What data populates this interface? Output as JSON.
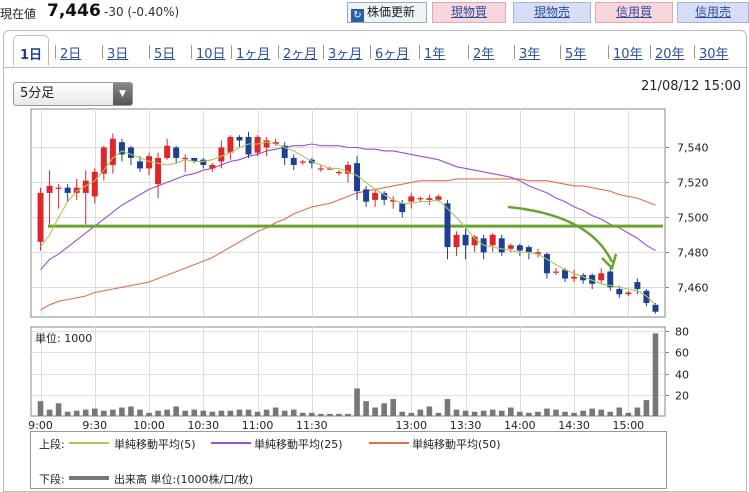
{
  "header": {
    "price_label": "現在値",
    "price_value": "7,446",
    "price_change": "-30 (-0.40%)",
    "refresh_label": "株価更新",
    "buttons": [
      "現物買",
      "現物売",
      "信用買",
      "信用売"
    ]
  },
  "tabs": [
    "1日",
    "2日",
    "3日",
    "5日",
    "10日",
    "1ヶ月",
    "2ヶ月",
    "3ヶ月",
    "6ヶ月",
    "1年",
    "2年",
    "3年",
    "5年",
    "10年",
    "20年",
    "30年"
  ],
  "active_tab": "1日",
  "interval_select": "5分足",
  "datetime": "21/08/12 15:00",
  "volume_unit_label": "単位: 1000",
  "legend": {
    "upper_label": "上段:",
    "lower_label": "下段:",
    "ma5": "単純移動平均(5)",
    "ma25": "単純移動平均(25)",
    "ma50": "単純移動平均(50)",
    "volume": "出来高 単位:(1000株/口/枚)"
  },
  "colors": {
    "up": "#e0252b",
    "down": "#1f3f93",
    "ma5": "#a7c957",
    "ma25": "#9b4fd1",
    "ma50": "#e0714b",
    "support": "#6aa42e",
    "volume": "#777777"
  },
  "chart_data": [
    {
      "type": "candlestick",
      "y_ticks": [
        "7,540",
        "7,520",
        "7,500",
        "7,480",
        "7,460"
      ],
      "ylim": [
        7443,
        7562
      ],
      "x_ticks": [
        "9:00",
        "9:30",
        "10:00",
        "10:30",
        "11:00",
        "11:30",
        "13:00",
        "13:30",
        "14:00",
        "14:30",
        "15:00"
      ],
      "grid": true,
      "candles": [
        [
          7486,
          7514,
          7481,
          7517
        ],
        [
          7514,
          7518,
          7496,
          7527
        ],
        [
          7517,
          7517,
          7505,
          7519
        ],
        [
          7517,
          7514,
          7509,
          7519
        ],
        [
          7514,
          7517,
          7510,
          7522
        ],
        [
          7514,
          7521,
          7496,
          7527
        ],
        [
          7512,
          7526,
          7508,
          7528
        ],
        [
          7525,
          7540,
          7521,
          7541
        ],
        [
          7530,
          7545,
          7525,
          7548
        ],
        [
          7543,
          7536,
          7532,
          7545
        ],
        [
          7540,
          7534,
          7530,
          7541
        ],
        [
          7532,
          7528,
          7526,
          7535
        ],
        [
          7528,
          7535,
          7524,
          7537
        ],
        [
          7519,
          7534,
          7511,
          7537
        ],
        [
          7534,
          7541,
          7533,
          7545
        ],
        [
          7540,
          7534,
          7531,
          7541
        ],
        [
          7534,
          7534,
          7526,
          7536
        ],
        [
          7534,
          7532,
          7531,
          7534
        ],
        [
          7533,
          7530,
          7528,
          7534
        ],
        [
          7528,
          7530,
          7526,
          7531
        ],
        [
          7532,
          7540,
          7528,
          7544
        ],
        [
          7537,
          7546,
          7533,
          7547
        ],
        [
          7546,
          7544,
          7540,
          7547
        ],
        [
          7546,
          7536,
          7534,
          7549
        ],
        [
          7537,
          7546,
          7535,
          7547
        ],
        [
          7540,
          7544,
          7535,
          7546
        ],
        [
          7542,
          7543,
          7541,
          7545
        ],
        [
          7541,
          7534,
          7530,
          7543
        ],
        [
          7534,
          7530,
          7527,
          7536
        ],
        [
          7532,
          7532,
          7530,
          7533
        ],
        [
          7533,
          7531,
          7528,
          7534
        ],
        [
          7528,
          7528,
          7526,
          7530
        ],
        [
          7528,
          7528,
          7527,
          7529
        ],
        [
          7526,
          7526,
          7524,
          7527
        ],
        [
          7525,
          7530,
          7520,
          7532
        ],
        [
          7531,
          7515,
          7510,
          7535
        ],
        [
          7516,
          7509,
          7506,
          7518
        ],
        [
          7510,
          7514,
          7506,
          7516
        ],
        [
          7514,
          7510,
          7507,
          7515
        ],
        [
          7509,
          7510,
          7505,
          7512
        ],
        [
          7508,
          7503,
          7500,
          7510
        ],
        [
          7509,
          7512,
          7505,
          7514
        ],
        [
          7511,
          7511,
          7509,
          7512
        ],
        [
          7510,
          7511,
          7507,
          7513
        ],
        [
          7510,
          7512,
          7509,
          7513
        ],
        [
          7508,
          7483,
          7476,
          7510
        ],
        [
          7483,
          7490,
          7478,
          7492
        ],
        [
          7490,
          7484,
          7476,
          7494
        ],
        [
          7484,
          7489,
          7480,
          7490
        ],
        [
          7488,
          7480,
          7476,
          7490
        ],
        [
          7484,
          7490,
          7480,
          7491
        ],
        [
          7488,
          7480,
          7478,
          7490
        ],
        [
          7482,
          7484,
          7480,
          7485
        ],
        [
          7484,
          7481,
          7478,
          7485
        ],
        [
          7483,
          7480,
          7476,
          7484
        ],
        [
          7479,
          7480,
          7477,
          7482
        ],
        [
          7479,
          7468,
          7465,
          7480
        ],
        [
          7469,
          7469,
          7467,
          7471
        ],
        [
          7470,
          7465,
          7463,
          7471
        ],
        [
          7465,
          7466,
          7463,
          7470
        ],
        [
          7467,
          7464,
          7462,
          7468
        ],
        [
          7467,
          7462,
          7459,
          7468
        ],
        [
          7464,
          7468,
          7462,
          7471
        ],
        [
          7469,
          7460,
          7458,
          7471
        ],
        [
          7459,
          7456,
          7454,
          7461
        ],
        [
          7456,
          7457,
          7455,
          7458
        ],
        [
          7463,
          7459,
          7456,
          7465
        ],
        [
          7458,
          7451,
          7449,
          7459
        ],
        [
          7450,
          7446,
          7445,
          7451
        ]
      ],
      "ma5": [
        7483,
        7490,
        7500,
        7509,
        7515,
        7518,
        7521,
        7527,
        7534,
        7538,
        7536,
        7534,
        7532,
        7531,
        7530,
        7531,
        7533,
        7532,
        7532,
        7533,
        7535,
        7537,
        7540,
        7542,
        7542,
        7543,
        7542,
        7540,
        7538,
        7535,
        7532,
        7530,
        7528,
        7528,
        7526,
        7524,
        7520,
        7516,
        7513,
        7510,
        7508,
        7508,
        7509,
        7509,
        7510,
        7505,
        7500,
        7494,
        7488,
        7484,
        7483,
        7482,
        7481,
        7480,
        7480,
        7479,
        7476,
        7473,
        7470,
        7468,
        7466,
        7464,
        7462,
        7461,
        7460,
        7459,
        7458,
        7455,
        7450
      ],
      "ma25": [
        7470,
        7476,
        7479,
        7483,
        7487,
        7491,
        7495,
        7499,
        7503,
        7507,
        7510,
        7513,
        7516,
        7518,
        7520,
        7522,
        7524,
        7525,
        7527,
        7528,
        7530,
        7532,
        7533,
        7535,
        7536,
        7538,
        7539,
        7540,
        7541,
        7541,
        7542,
        7541,
        7541,
        7541,
        7540,
        7540,
        7539,
        7539,
        7538,
        7538,
        7537,
        7536,
        7535,
        7534,
        7533,
        7531,
        7529,
        7528,
        7527,
        7526,
        7525,
        7524,
        7523,
        7521,
        7518,
        7516,
        7514,
        7511,
        7509,
        7506,
        7504,
        7501,
        7499,
        7496,
        7494,
        7491,
        7488,
        7484,
        7481
      ],
      "ma50": [
        7447,
        7450,
        7452,
        7453,
        7454,
        7455,
        7457,
        7458,
        7459,
        7460,
        7461,
        7462,
        7463,
        7465,
        7467,
        7469,
        7471,
        7473,
        7475,
        7477,
        7480,
        7483,
        7486,
        7489,
        7492,
        7494,
        7497,
        7499,
        7502,
        7504,
        7506,
        7507,
        7508,
        7510,
        7512,
        7514,
        7515,
        7516,
        7517,
        7518,
        7519,
        7520,
        7521,
        7521,
        7521,
        7521,
        7522,
        7522,
        7522,
        7522,
        7522,
        7522,
        7522,
        7522,
        7521,
        7521,
        7521,
        7520,
        7519,
        7518,
        7518,
        7517,
        7516,
        7515,
        7513,
        7512,
        7511,
        7509,
        7507
      ],
      "support_level": 7495
    },
    {
      "type": "bar",
      "series_name": "出来高",
      "y_ticks": [
        "80",
        "60",
        "40",
        "20"
      ],
      "ylim": [
        0,
        84
      ],
      "values": [
        14,
        6,
        12,
        4,
        5,
        6,
        7,
        5,
        6,
        8,
        9,
        6,
        3,
        5,
        6,
        9,
        5,
        6,
        5,
        4,
        5,
        5,
        6,
        6,
        4,
        6,
        8,
        5,
        6,
        3,
        3,
        2,
        2,
        2,
        2,
        26,
        14,
        8,
        12,
        16,
        4,
        3,
        6,
        9,
        3,
        16,
        6,
        5,
        4,
        5,
        6,
        5,
        8,
        4,
        3,
        4,
        7,
        6,
        4,
        3,
        5,
        7,
        6,
        4,
        8,
        3,
        8,
        15,
        78
      ]
    }
  ]
}
